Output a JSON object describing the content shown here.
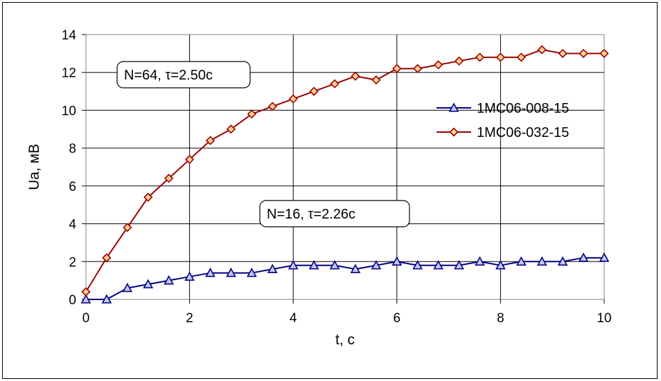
{
  "chart_data": {
    "type": "line",
    "xlabel": "t, c",
    "ylabel": "Ua, мВ",
    "xlim": [
      0,
      10
    ],
    "ylim": [
      0,
      14
    ],
    "xticks": [
      "0",
      "2",
      "4",
      "6",
      "8",
      "10"
    ],
    "yticks": [
      "0",
      "2",
      "4",
      "6",
      "8",
      "10",
      "12",
      "14"
    ],
    "grid": true,
    "legend_position": "right",
    "series": [
      {
        "name": "1MC06-008-15",
        "color": "#000080",
        "marker": "triangle",
        "x": [
          0,
          0.4,
          0.8,
          1.2,
          1.6,
          2.0,
          2.4,
          2.8,
          3.2,
          3.6,
          4.0,
          4.4,
          4.8,
          5.2,
          5.6,
          6.0,
          6.4,
          6.8,
          7.2,
          7.6,
          8.0,
          8.4,
          8.8,
          9.2,
          9.6,
          10.0
        ],
        "y": [
          0,
          0,
          0.6,
          0.8,
          1.0,
          1.2,
          1.4,
          1.4,
          1.4,
          1.6,
          1.8,
          1.8,
          1.8,
          1.6,
          1.8,
          2.0,
          1.8,
          1.8,
          1.8,
          2.0,
          1.8,
          2.0,
          2.0,
          2.0,
          2.2,
          2.2
        ]
      },
      {
        "name": "1MC06-032-15",
        "color": "#990000",
        "marker": "diamond",
        "x": [
          0,
          0.4,
          0.8,
          1.2,
          1.6,
          2.0,
          2.4,
          2.8,
          3.2,
          3.6,
          4.0,
          4.4,
          4.8,
          5.2,
          5.6,
          6.0,
          6.4,
          6.8,
          7.2,
          7.6,
          8.0,
          8.4,
          8.8,
          9.2,
          9.6,
          10.0
        ],
        "y": [
          0.4,
          2.2,
          3.8,
          5.4,
          6.4,
          7.4,
          8.4,
          9.0,
          9.8,
          10.2,
          10.6,
          11.0,
          11.4,
          11.8,
          11.6,
          12.2,
          12.2,
          12.4,
          12.6,
          12.8,
          12.8,
          12.8,
          13.2,
          13.0,
          13.0,
          13.0
        ]
      }
    ],
    "annotations": [
      {
        "text": "N=64, τ=2.50c"
      },
      {
        "text": "N=16, τ=2.26c"
      }
    ]
  }
}
